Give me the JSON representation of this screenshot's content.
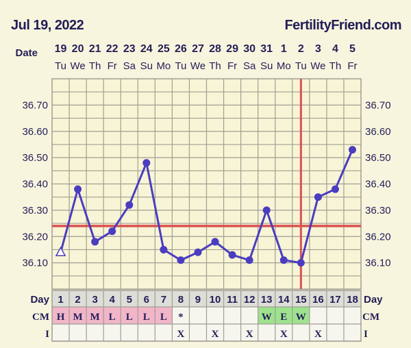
{
  "header": {
    "date": "Jul 19, 2022",
    "site": "FertilityFriend.com"
  },
  "labels": {
    "date": "Date",
    "day": "Day",
    "cm": "CM",
    "i": "I"
  },
  "colors": {
    "line": "#4a3dbf",
    "coverline": "#d9534f",
    "grid": "#a09e92",
    "text": "#221d57",
    "cm_pink": "#f2b5c9",
    "cm_green": "#9ee28e",
    "day_bg": "#deded8"
  },
  "chart_data": {
    "type": "line",
    "title": "",
    "dates": [
      "19",
      "20",
      "21",
      "22",
      "23",
      "24",
      "25",
      "26",
      "27",
      "28",
      "29",
      "30",
      "31",
      "1",
      "2",
      "3",
      "4",
      "5"
    ],
    "weekdays": [
      "Tu",
      "We",
      "Th",
      "Fr",
      "Sa",
      "Su",
      "Mo",
      "Tu",
      "We",
      "Th",
      "Fr",
      "Sa",
      "Su",
      "Mo",
      "Tu",
      "We",
      "Th",
      "Fr"
    ],
    "days": [
      "1",
      "2",
      "3",
      "4",
      "5",
      "6",
      "7",
      "8",
      "9",
      "10",
      "11",
      "12",
      "13",
      "14",
      "15",
      "16",
      "17",
      "18"
    ],
    "temps": [
      36.14,
      36.38,
      36.18,
      36.22,
      36.32,
      36.48,
      36.15,
      36.11,
      36.14,
      36.18,
      36.13,
      36.11,
      36.3,
      36.11,
      36.1,
      36.35,
      36.38,
      36.53
    ],
    "point_markers": [
      "triangle-open",
      "circle",
      "circle",
      "circle",
      "circle",
      "circle",
      "circle",
      "circle",
      "circle",
      "circle",
      "circle",
      "circle",
      "circle",
      "circle",
      "circle",
      "circle",
      "circle",
      "circle"
    ],
    "ylim": [
      36.0,
      36.8
    ],
    "yticks": [
      "36.70",
      "36.60",
      "36.50",
      "36.40",
      "36.30",
      "36.20",
      "36.10"
    ],
    "coverline": 36.24,
    "ovulation_day": 15,
    "cm": [
      "H",
      "M",
      "M",
      "L",
      "L",
      "L",
      "L",
      "*",
      "",
      "",
      "",
      "",
      "W",
      "E",
      "W",
      "",
      "",
      ""
    ],
    "cm_colors": [
      "pink",
      "pink",
      "pink",
      "pink",
      "pink",
      "pink",
      "pink",
      "",
      "",
      "",
      "",
      "",
      "green",
      "green",
      "green",
      "",
      "",
      ""
    ],
    "intercourse": [
      "",
      "",
      "",
      "",
      "",
      "",
      "",
      "X",
      "",
      "X",
      "",
      "X",
      "",
      "X",
      "",
      "X",
      "",
      ""
    ]
  }
}
